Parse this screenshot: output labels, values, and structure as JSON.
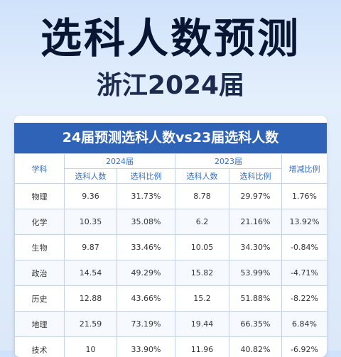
{
  "page": {
    "title": "选科人数预测",
    "subtitle": "浙江2024届"
  },
  "table": {
    "title": "24届预测选科人数vs23届选科人数",
    "head_subject": "学科",
    "group_2024": "2024届",
    "group_2023": "2023届",
    "head_change": "增减比例",
    "col_count": "选科人数",
    "col_ratio": "选科比例",
    "rows": [
      {
        "subject": "物理",
        "c2024": "9.36",
        "r2024": "31.73%",
        "c2023": "8.78",
        "r2023": "29.97%",
        "change": "1.76%"
      },
      {
        "subject": "化学",
        "c2024": "10.35",
        "r2024": "35.08%",
        "c2023": "6.2",
        "r2023": "21.16%",
        "change": "13.92%"
      },
      {
        "subject": "生物",
        "c2024": "9.87",
        "r2024": "33.46%",
        "c2023": "10.05",
        "r2023": "34.30%",
        "change": "-0.84%"
      },
      {
        "subject": "政治",
        "c2024": "14.54",
        "r2024": "49.29%",
        "c2023": "15.82",
        "r2023": "53.99%",
        "change": "-4.71%"
      },
      {
        "subject": "历史",
        "c2024": "12.88",
        "r2024": "43.66%",
        "c2023": "15.2",
        "r2023": "51.88%",
        "change": "-8.22%"
      },
      {
        "subject": "地理",
        "c2024": "21.59",
        "r2024": "73.19%",
        "c2023": "19.44",
        "r2023": "66.35%",
        "change": "6.84%"
      },
      {
        "subject": "技术",
        "c2024": "10",
        "r2024": "33.90%",
        "c2023": "11.96",
        "r2023": "40.82%",
        "change": "-6.92%"
      }
    ]
  }
}
